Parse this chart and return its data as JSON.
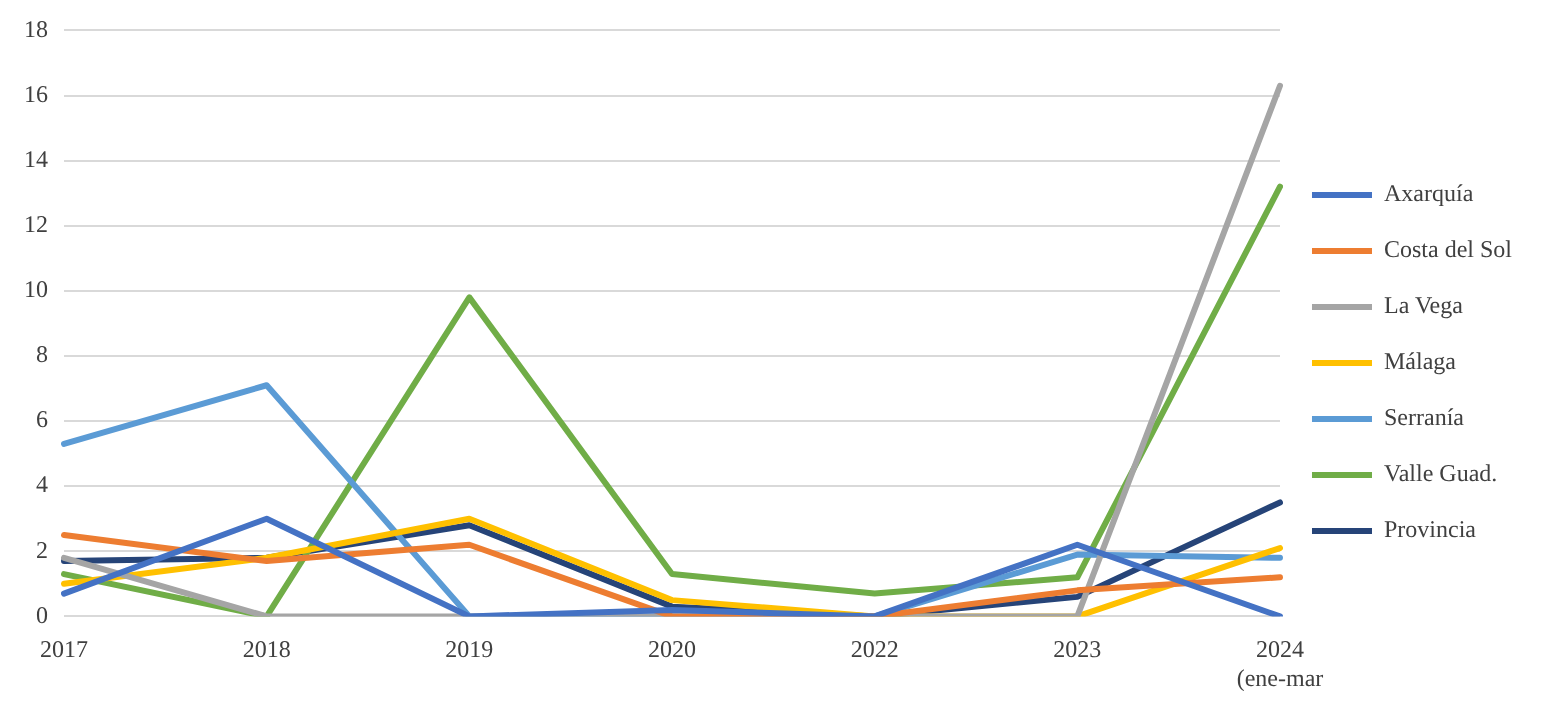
{
  "chart_data": {
    "type": "line",
    "categories": [
      "2017",
      "2018",
      "2019",
      "2020",
      "2022",
      "2023",
      "2024 (ene-mar"
    ],
    "ylim": [
      0,
      18
    ],
    "yticks": [
      0,
      2,
      4,
      6,
      8,
      10,
      12,
      14,
      16,
      18
    ],
    "grid": "y",
    "legend": "right",
    "marker": "none",
    "line_style": "solid",
    "series": [
      {
        "name": "Axarquía",
        "color": "#4472c4",
        "values": [
          0.7,
          3.0,
          0,
          0.2,
          0,
          2.2,
          0
        ]
      },
      {
        "name": "Costa del Sol",
        "color": "#ed7d31",
        "values": [
          2.5,
          1.7,
          2.2,
          0,
          0,
          0.8,
          1.2
        ]
      },
      {
        "name": "La Vega",
        "color": "#a5a5a5",
        "values": [
          1.8,
          0,
          0,
          0,
          0,
          0,
          16.3
        ]
      },
      {
        "name": "Málaga",
        "color": "#ffc000",
        "values": [
          1.0,
          1.8,
          3.0,
          0.5,
          0,
          0,
          2.1
        ]
      },
      {
        "name": "Serranía",
        "color": "#5b9bd5",
        "values": [
          5.3,
          7.1,
          0,
          0,
          0,
          1.9,
          1.8
        ]
      },
      {
        "name": "Valle Guad.",
        "color": "#70ad47",
        "values": [
          1.3,
          0,
          9.8,
          1.3,
          0.7,
          1.2,
          13.2
        ]
      },
      {
        "name": "Provincia",
        "color": "#264478",
        "values": [
          1.7,
          1.8,
          2.8,
          0.3,
          0,
          0.6,
          3.5
        ]
      }
    ]
  }
}
